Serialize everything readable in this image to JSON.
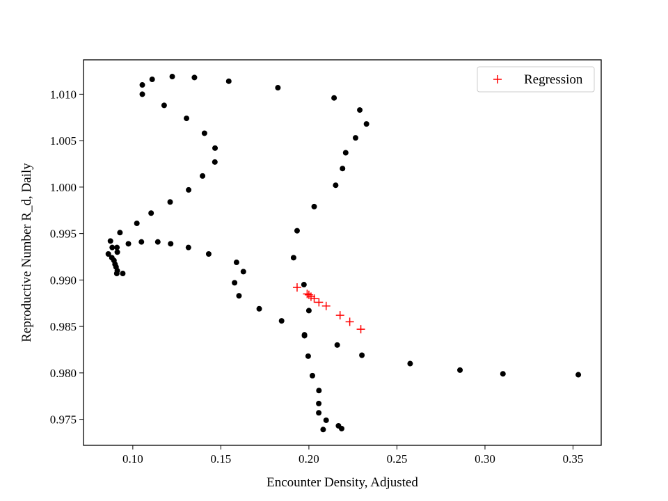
{
  "chart_data": {
    "type": "scatter",
    "title": "",
    "xlabel": "Encounter Density, Adjusted",
    "ylabel": "Reproductive Number R_d, Daily",
    "xlim": [
      0.072,
      0.366
    ],
    "ylim": [
      0.9722,
      1.0137
    ],
    "xticks": [
      0.1,
      0.15,
      0.2,
      0.25,
      0.3,
      0.35
    ],
    "xtick_labels": [
      "0.10",
      "0.15",
      "0.20",
      "0.25",
      "0.30",
      "0.35"
    ],
    "yticks": [
      0.975,
      0.98,
      0.985,
      0.99,
      0.995,
      1.0,
      1.005,
      1.01
    ],
    "ytick_labels": [
      "0.975",
      "0.980",
      "0.985",
      "0.990",
      "0.995",
      "1.000",
      "1.005",
      "1.010"
    ],
    "grid": false,
    "legend_position": "top-right",
    "series": [
      {
        "color": "#000000",
        "marker": "dot",
        "x": [
          0.1054,
          0.111,
          0.1224,
          0.135,
          0.1545,
          0.1824,
          0.2143,
          0.2289,
          0.2327,
          0.2265,
          0.2209,
          0.2191,
          0.2152,
          0.203,
          0.1933,
          0.1913,
          0.1972,
          0.2,
          0.1975,
          0.1975,
          0.1996,
          0.202,
          0.2057,
          0.2056,
          0.2056,
          0.2098,
          0.2081,
          0.2168,
          0.2186,
          0.2161,
          0.2301,
          0.2575,
          0.2858,
          0.3102,
          0.353,
          0.1054,
          0.1178,
          0.1305,
          0.1407,
          0.1467,
          0.1466,
          0.1396,
          0.1317,
          0.1212,
          0.1104,
          0.1023,
          0.0927,
          0.0873,
          0.0883,
          0.0912,
          0.091,
          0.0861,
          0.0881,
          0.0893,
          0.0899,
          0.0905,
          0.0912,
          0.0909,
          0.0943,
          0.0975,
          0.1049,
          0.1142,
          0.1215,
          0.1316,
          0.1431,
          0.1589,
          0.1628,
          0.1578,
          0.1603,
          0.1718,
          0.1845
        ],
        "y": [
          1.011,
          1.0116,
          1.0119,
          1.0118,
          1.0114,
          1.0107,
          1.0096,
          1.0083,
          1.0068,
          1.0053,
          1.0037,
          1.002,
          1.0002,
          0.9979,
          0.9953,
          0.9924,
          0.9895,
          0.9867,
          0.9841,
          0.984,
          0.9818,
          0.9797,
          0.9781,
          0.9767,
          0.9757,
          0.9749,
          0.9739,
          0.9743,
          0.974,
          0.983,
          0.9819,
          0.981,
          0.9803,
          0.9799,
          0.9798,
          1.01,
          1.0088,
          1.0074,
          1.0058,
          1.0042,
          1.0027,
          1.0012,
          0.9997,
          0.9984,
          0.9972,
          0.9961,
          0.9951,
          0.9942,
          0.9935,
          0.993,
          0.9935,
          0.9928,
          0.9924,
          0.9921,
          0.9917,
          0.9914,
          0.991,
          0.9907,
          0.9907,
          0.9939,
          0.9941,
          0.9941,
          0.9939,
          0.9935,
          0.9928,
          0.9919,
          0.9909,
          0.9897,
          0.9883,
          0.9869,
          0.9856
        ]
      },
      {
        "name": "Regression",
        "color": "#ff0000",
        "marker": "plus",
        "x": [
          0.1933,
          0.199,
          0.2,
          0.2012,
          0.203,
          0.2057,
          0.2098,
          0.2177,
          0.2232,
          0.2295
        ],
        "y": [
          0.9892,
          0.9885,
          0.9884,
          0.9882,
          0.988,
          0.9876,
          0.9872,
          0.9862,
          0.9855,
          0.9847
        ]
      }
    ]
  }
}
